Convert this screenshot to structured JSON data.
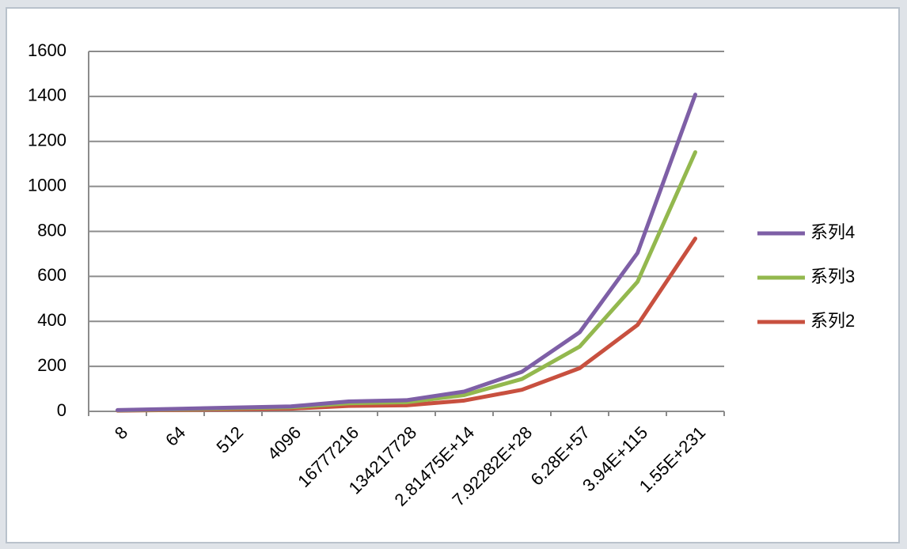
{
  "chart_data": {
    "type": "line",
    "categories": [
      "8",
      "64",
      "512",
      "4096",
      "16777216",
      "134217728",
      "2.81475E+14",
      "7.92282E+28",
      "6.28E+57",
      "3.94E+115",
      "1.55E+231"
    ],
    "series": [
      {
        "name": "系列4",
        "color": "#7e5fa6",
        "values": [
          5.5,
          11,
          16.5,
          22,
          44,
          49.5,
          88,
          176,
          352,
          704,
          1408
        ]
      },
      {
        "name": "系列3",
        "color": "#93b84e",
        "values": [
          4.5,
          9,
          13.5,
          18,
          36,
          40.5,
          72,
          144,
          288,
          576,
          1152
        ]
      },
      {
        "name": "系列2",
        "color": "#c8503f",
        "values": [
          3,
          6,
          9,
          12,
          24,
          27,
          48,
          96,
          192,
          384,
          768
        ]
      }
    ],
    "ylim": [
      0,
      1600
    ],
    "yticks": [
      0,
      200,
      400,
      600,
      800,
      1000,
      1200,
      1400,
      1600
    ],
    "grid": true,
    "legend": "right"
  }
}
